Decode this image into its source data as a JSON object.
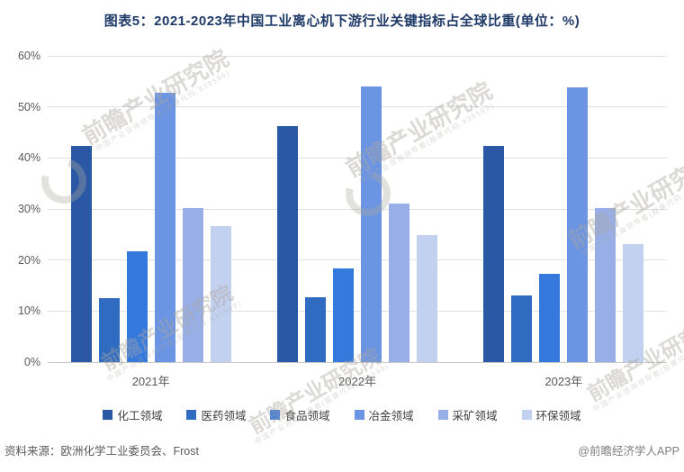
{
  "chart_data": {
    "type": "bar",
    "title": "图表5：2021-2023年中国工业离心机下游行业关键指标占全球比重(单位：%)",
    "categories": [
      "2021年",
      "2022年",
      "2023年"
    ],
    "series": [
      {
        "key": "chemical",
        "name": "化工领域",
        "color": "#2A58A5",
        "values": [
          42.3,
          46.3,
          42.3
        ]
      },
      {
        "key": "pharma",
        "name": "医药领域",
        "color": "#2F6BC0",
        "values": [
          12.5,
          12.7,
          13.0
        ]
      },
      {
        "key": "food",
        "name": "食品领域",
        "color": "#3579DC",
        "values": [
          21.7,
          18.4,
          17.3
        ]
      },
      {
        "key": "metallurgy",
        "name": "冶金领域",
        "color": "#6B94E2",
        "values": [
          52.8,
          54.0,
          53.9
        ]
      },
      {
        "key": "mining",
        "name": "采矿领域",
        "color": "#97AEE7",
        "values": [
          30.1,
          31.0,
          30.2
        ]
      },
      {
        "key": "environmental",
        "name": "环保领域",
        "color": "#C3D1F1",
        "values": [
          26.6,
          24.9,
          23.1
        ]
      }
    ],
    "ylim": [
      0,
      60
    ],
    "ytick_step": 10,
    "ytick_suffix": "%",
    "grid": true,
    "legend_position": "bottom"
  },
  "watermark": {
    "text": "前瞻产业研究院",
    "subtext": "中国产业咨询领导者(股票代码:839599)"
  },
  "footer": {
    "source": "资料来源：欧洲化学工业委员会、Frost",
    "credit": "@前瞻经济学人APP"
  },
  "colors": {
    "title_text": "#1E3A68",
    "axis_text": "#595959",
    "legend_text": "#3F3F3F",
    "gridline": "#E1E1E1",
    "baseline": "#C8C8C8",
    "watermark": "#ACA89F"
  }
}
